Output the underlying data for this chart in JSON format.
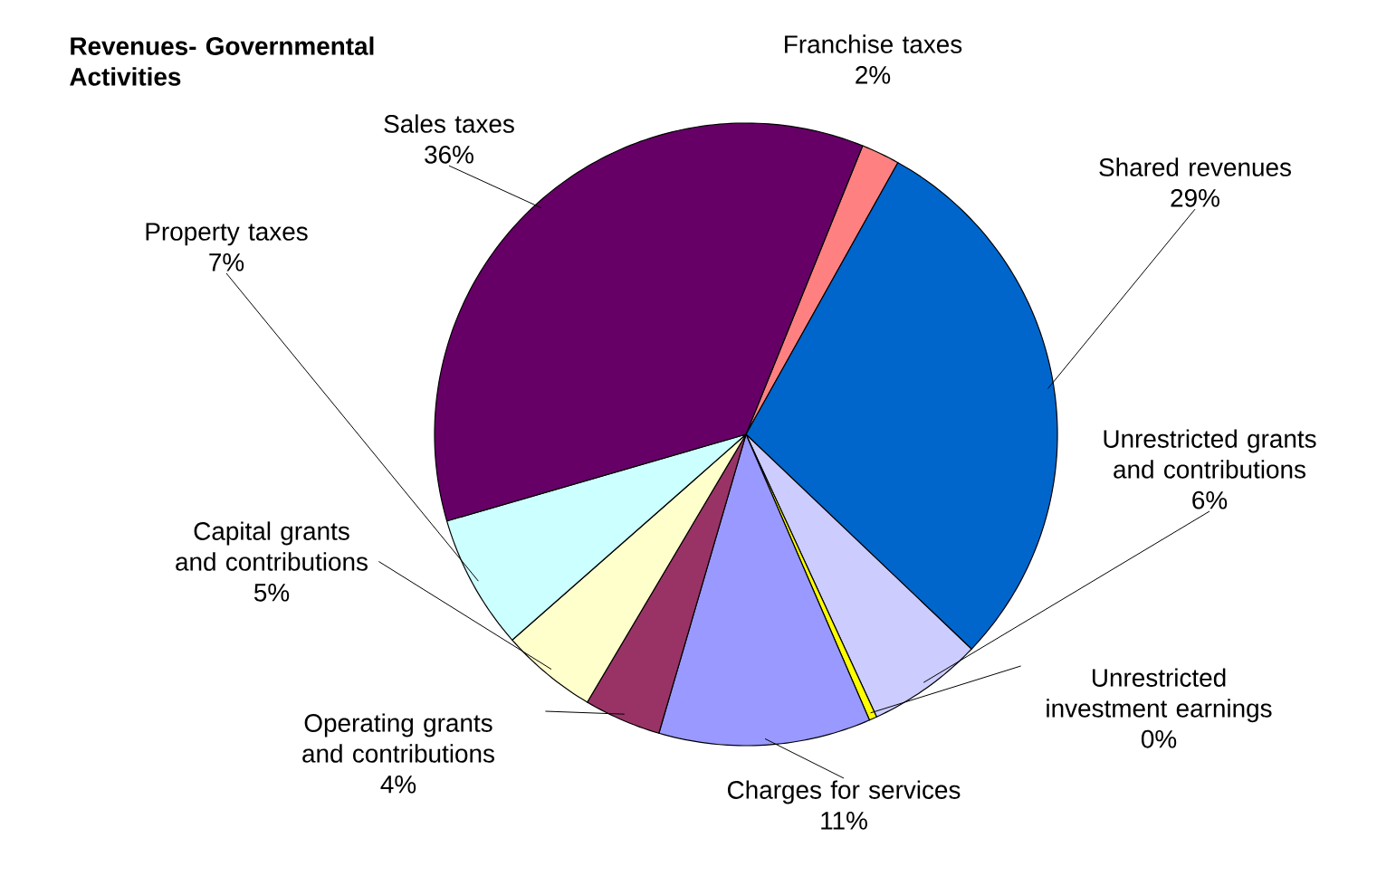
{
  "chart_data": {
    "type": "pie",
    "title": "Revenues- Governmental Activities",
    "categories": [
      "Franchise taxes",
      "Shared revenues",
      "Unrestricted grants and contributions",
      "Unrestricted investment earnings",
      "Charges for services",
      "Operating grants and contributions",
      "Capital grants and contributions",
      "Property taxes",
      "Sales taxes"
    ],
    "values": [
      2,
      29,
      6,
      0.4,
      11,
      4,
      5,
      7,
      35.6
    ],
    "value_labels": [
      "2%",
      "29%",
      "6%",
      "0%",
      "11%",
      "4%",
      "5%",
      "7%",
      "36%"
    ],
    "colors": [
      "#ff8080",
      "#0066cc",
      "#ccccff",
      "#ffff00",
      "#9999ff",
      "#993366",
      "#ffffcc",
      "#ccffff",
      "#660066"
    ]
  }
}
